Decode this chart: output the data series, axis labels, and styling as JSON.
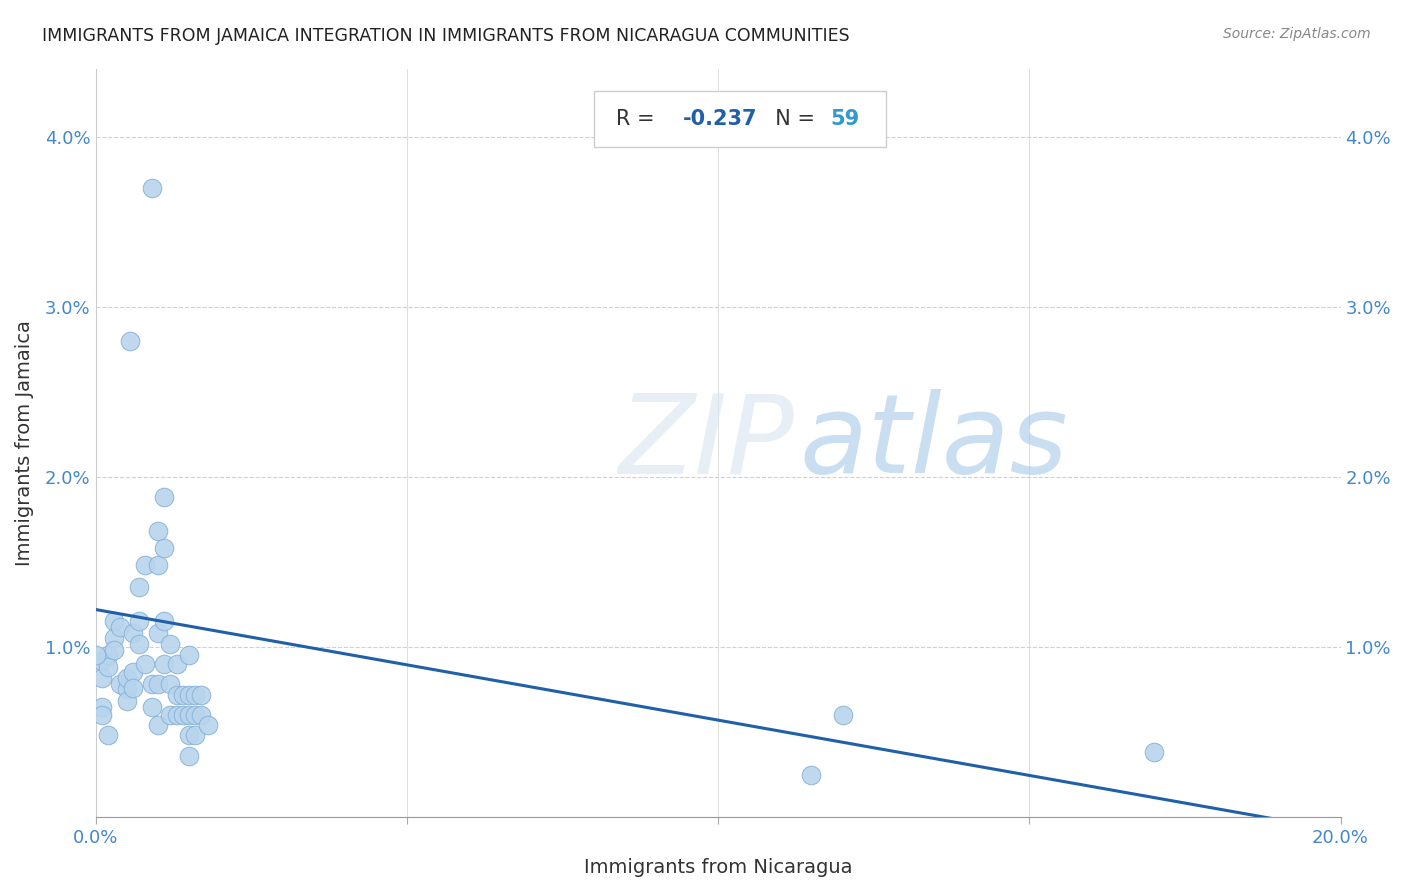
{
  "title": "IMMIGRANTS FROM JAMAICA INTEGRATION IN IMMIGRANTS FROM NICARAGUA COMMUNITIES",
  "source": "Source: ZipAtlas.com",
  "xlabel": "Immigrants from Nicaragua",
  "ylabel": "Immigrants from Jamaica",
  "R": -0.237,
  "N": 59,
  "watermark_ZIP": "ZIP",
  "watermark_atlas": "atlas",
  "xlim": [
    0.0,
    0.2
  ],
  "ylim": [
    0.0,
    0.044
  ],
  "xticks": [
    0.0,
    0.05,
    0.1,
    0.15,
    0.2
  ],
  "yticks": [
    0.0,
    0.01,
    0.02,
    0.03,
    0.04
  ],
  "scatter_color": "#b8d4ed",
  "scatter_edge_color": "#85b0d8",
  "line_color": "#2060a8",
  "title_color": "#222222",
  "axis_label_color": "#333333",
  "tick_color": "#4488cc",
  "grid_color": "#d0d0d0",
  "R_color": "#2060a8",
  "N_color": "#3399cc",
  "points": [
    [
      0.001,
      0.0092
    ],
    [
      0.001,
      0.0082
    ],
    [
      0.002,
      0.0095
    ],
    [
      0.002,
      0.0088
    ],
    [
      0.003,
      0.0115
    ],
    [
      0.003,
      0.0105
    ],
    [
      0.003,
      0.0098
    ],
    [
      0.004,
      0.0112
    ],
    [
      0.004,
      0.0078
    ],
    [
      0.005,
      0.0075
    ],
    [
      0.005,
      0.0082
    ],
    [
      0.005,
      0.0068
    ],
    [
      0.006,
      0.0085
    ],
    [
      0.006,
      0.0076
    ],
    [
      0.006,
      0.0108
    ],
    [
      0.007,
      0.0135
    ],
    [
      0.007,
      0.0115
    ],
    [
      0.007,
      0.0102
    ],
    [
      0.008,
      0.0148
    ],
    [
      0.008,
      0.009
    ],
    [
      0.009,
      0.0078
    ],
    [
      0.009,
      0.0065
    ],
    [
      0.01,
      0.0168
    ],
    [
      0.01,
      0.0148
    ],
    [
      0.01,
      0.0108
    ],
    [
      0.01,
      0.0078
    ],
    [
      0.01,
      0.0054
    ],
    [
      0.011,
      0.0188
    ],
    [
      0.011,
      0.0158
    ],
    [
      0.011,
      0.0115
    ],
    [
      0.011,
      0.009
    ],
    [
      0.012,
      0.0102
    ],
    [
      0.012,
      0.0078
    ],
    [
      0.012,
      0.006
    ],
    [
      0.013,
      0.009
    ],
    [
      0.013,
      0.0072
    ],
    [
      0.013,
      0.006
    ],
    [
      0.014,
      0.0072
    ],
    [
      0.014,
      0.006
    ],
    [
      0.015,
      0.0095
    ],
    [
      0.015,
      0.0072
    ],
    [
      0.015,
      0.006
    ],
    [
      0.015,
      0.0048
    ],
    [
      0.015,
      0.0036
    ],
    [
      0.016,
      0.0072
    ],
    [
      0.016,
      0.006
    ],
    [
      0.016,
      0.0048
    ],
    [
      0.017,
      0.0072
    ],
    [
      0.017,
      0.006
    ],
    [
      0.018,
      0.0054
    ],
    [
      0.0055,
      0.028
    ],
    [
      0.0,
      0.0095
    ],
    [
      0.001,
      0.0065
    ],
    [
      0.001,
      0.006
    ],
    [
      0.002,
      0.0048
    ],
    [
      0.009,
      0.037
    ],
    [
      0.12,
      0.006
    ],
    [
      0.17,
      0.0038
    ],
    [
      0.115,
      0.0025
    ]
  ],
  "line_x0": 0.0,
  "line_y0": 0.0122,
  "line_x1": 0.2,
  "line_y1": -0.0008
}
